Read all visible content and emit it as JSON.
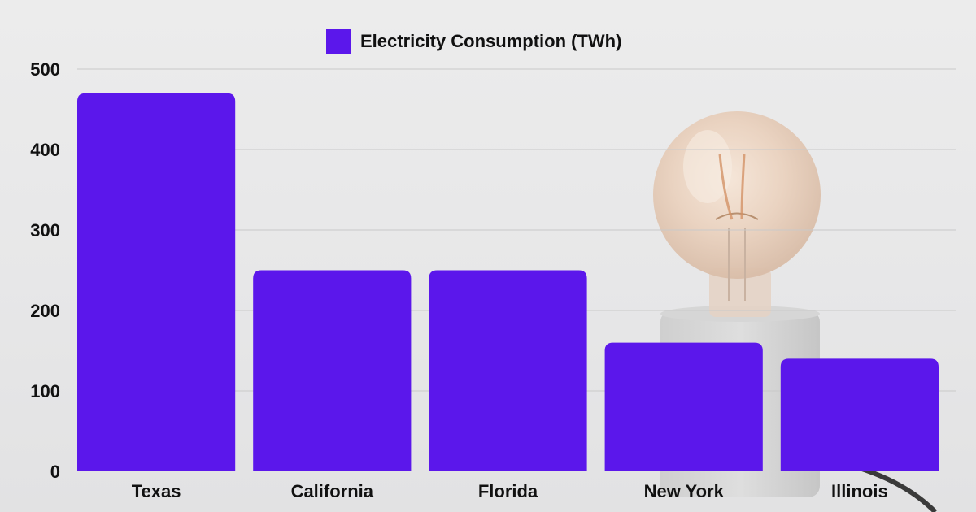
{
  "chart_data": {
    "type": "bar",
    "categories": [
      "Texas",
      "California",
      "Florida",
      "New York",
      "Illinois"
    ],
    "series": [
      {
        "name": "Electricity Consumption (TWh)",
        "values": [
          470,
          250,
          250,
          160,
          140
        ]
      }
    ],
    "ylim": [
      0,
      500
    ],
    "yticks": [
      0,
      100,
      200,
      300,
      400,
      500
    ],
    "grid": true,
    "legend": "top-center",
    "colors": {
      "bar": "#5b17eb",
      "grid": "#c9c9c9",
      "text": "#111111"
    }
  }
}
